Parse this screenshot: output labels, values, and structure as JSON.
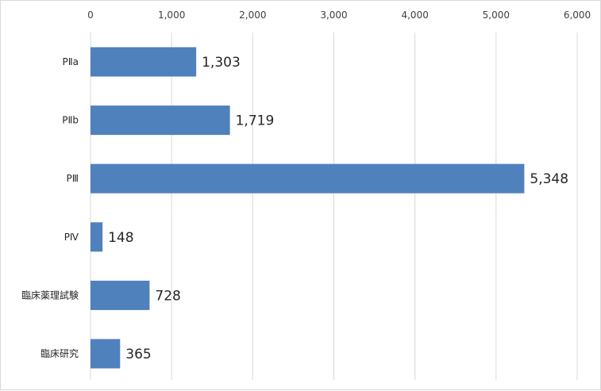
{
  "chart_data": {
    "type": "bar",
    "orientation": "horizontal",
    "categories": [
      "PⅡa",
      "PⅡb",
      "PⅢ",
      "PⅣ",
      "臨床薬理試験",
      "臨床研究"
    ],
    "values": [
      1303,
      1719,
      5348,
      148,
      728,
      365
    ],
    "data_labels": [
      "1,303",
      "1,719",
      "5,348",
      "148",
      "728",
      "365"
    ],
    "x_axis": {
      "position": "top",
      "range": [
        0,
        6000
      ],
      "ticks": [
        0,
        1000,
        2000,
        3000,
        4000,
        5000,
        6000
      ],
      "tick_labels": [
        "0",
        "1,000",
        "2,000",
        "3,000",
        "4,000",
        "5,000",
        "6,000"
      ]
    },
    "grid": true,
    "legend": "none",
    "bar_color": "#4f81bd",
    "grid_color": "#d9d9d9"
  }
}
